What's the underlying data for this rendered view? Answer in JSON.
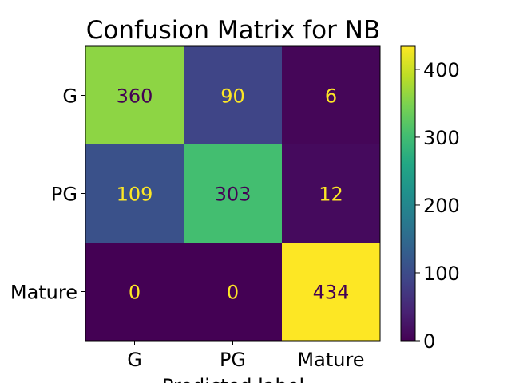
{
  "chart_data": {
    "type": "heatmap",
    "title": "Confusion Matrix for NB",
    "xlabel": "Predicted label",
    "ylabel": "",
    "x_categories": [
      "G",
      "PG",
      "Mature"
    ],
    "y_categories": [
      "G",
      "PG",
      "Mature"
    ],
    "values": [
      [
        360,
        90,
        6
      ],
      [
        109,
        303,
        12
      ],
      [
        0,
        0,
        434
      ]
    ],
    "colormap": "viridis",
    "colorbar": {
      "min": 0,
      "max": 434,
      "ticks": [
        0,
        100,
        200,
        300,
        400
      ],
      "tick_labels": [
        "0",
        "100",
        "200",
        "300",
        "400"
      ]
    },
    "text_colors": {
      "on_dark": "#fde725",
      "on_light": "#440154"
    }
  }
}
